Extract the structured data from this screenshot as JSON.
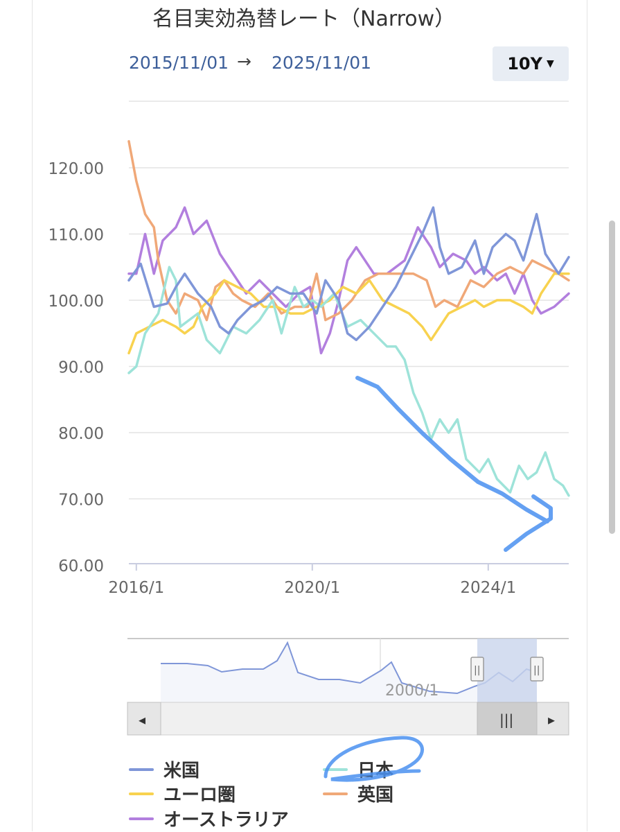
{
  "header": {
    "title": "名目実効為替レート（Narrow）",
    "date_from": "2015/11/01",
    "arrow": "→",
    "date_to": "2025/11/01",
    "range_button": "10Y",
    "range_caret": "▼"
  },
  "navigator": {
    "label": "2000/1",
    "handle_glyph": "||",
    "scroll_left": "◂",
    "scroll_right": "▸",
    "scroll_thumb": "|||"
  },
  "chart_data": {
    "type": "line",
    "title": "名目実効為替レート（Narrow）",
    "xlabel": "",
    "ylabel": "",
    "ylim": [
      60,
      130
    ],
    "xlim": [
      2015.83,
      2025.83
    ],
    "y_ticks": [
      "60.00",
      "70.00",
      "80.00",
      "90.00",
      "100.00",
      "110.00",
      "120.00"
    ],
    "x_ticks": [
      {
        "label": "2016/1",
        "value": 2016.0
      },
      {
        "label": "2020/1",
        "value": 2020.0
      },
      {
        "label": "2024/1",
        "value": 2024.0
      }
    ],
    "grid": true,
    "legend_position": "bottom",
    "series": [
      {
        "name": "米国",
        "color": "#7f96d8",
        "points": [
          [
            2015.83,
            103
          ],
          [
            2016.1,
            105.5
          ],
          [
            2016.4,
            99
          ],
          [
            2016.7,
            99.5
          ],
          [
            2016.9,
            102
          ],
          [
            2017.1,
            104
          ],
          [
            2017.4,
            101
          ],
          [
            2017.7,
            99
          ],
          [
            2017.9,
            96
          ],
          [
            2018.1,
            95
          ],
          [
            2018.3,
            97
          ],
          [
            2018.6,
            99
          ],
          [
            2018.9,
            100
          ],
          [
            2019.2,
            102
          ],
          [
            2019.5,
            101
          ],
          [
            2019.8,
            101
          ],
          [
            2020.1,
            98
          ],
          [
            2020.3,
            103
          ],
          [
            2020.6,
            100
          ],
          [
            2020.8,
            95
          ],
          [
            2021.0,
            94
          ],
          [
            2021.3,
            96
          ],
          [
            2021.6,
            99
          ],
          [
            2021.9,
            102
          ],
          [
            2022.2,
            106
          ],
          [
            2022.5,
            110
          ],
          [
            2022.75,
            114
          ],
          [
            2022.9,
            108
          ],
          [
            2023.1,
            104
          ],
          [
            2023.4,
            105
          ],
          [
            2023.7,
            109
          ],
          [
            2023.9,
            104
          ],
          [
            2024.1,
            108
          ],
          [
            2024.4,
            110
          ],
          [
            2024.6,
            109
          ],
          [
            2024.8,
            106
          ],
          [
            2025.1,
            113
          ],
          [
            2025.3,
            107
          ],
          [
            2025.6,
            104
          ],
          [
            2025.83,
            106.5
          ]
        ]
      },
      {
        "name": "日本",
        "color": "#9ee3d9",
        "points": [
          [
            2015.83,
            89
          ],
          [
            2016.0,
            90
          ],
          [
            2016.2,
            95
          ],
          [
            2016.5,
            98
          ],
          [
            2016.75,
            105
          ],
          [
            2016.9,
            103
          ],
          [
            2017.0,
            96
          ],
          [
            2017.2,
            97
          ],
          [
            2017.4,
            98
          ],
          [
            2017.6,
            94
          ],
          [
            2017.9,
            92
          ],
          [
            2018.2,
            96
          ],
          [
            2018.5,
            95
          ],
          [
            2018.8,
            97
          ],
          [
            2019.1,
            100
          ],
          [
            2019.3,
            95
          ],
          [
            2019.6,
            102
          ],
          [
            2019.8,
            99
          ],
          [
            2020.0,
            100
          ],
          [
            2020.2,
            99
          ],
          [
            2020.5,
            101
          ],
          [
            2020.8,
            96
          ],
          [
            2021.1,
            97
          ],
          [
            2021.4,
            95
          ],
          [
            2021.7,
            93
          ],
          [
            2021.9,
            93
          ],
          [
            2022.1,
            91
          ],
          [
            2022.3,
            86
          ],
          [
            2022.5,
            83
          ],
          [
            2022.7,
            79
          ],
          [
            2022.9,
            82
          ],
          [
            2023.1,
            80
          ],
          [
            2023.3,
            82
          ],
          [
            2023.5,
            76
          ],
          [
            2023.8,
            74
          ],
          [
            2024.0,
            76
          ],
          [
            2024.2,
            73
          ],
          [
            2024.5,
            71
          ],
          [
            2024.7,
            75
          ],
          [
            2024.9,
            73
          ],
          [
            2025.1,
            74
          ],
          [
            2025.3,
            77
          ],
          [
            2025.5,
            73
          ],
          [
            2025.7,
            72
          ],
          [
            2025.83,
            70.5
          ]
        ]
      },
      {
        "name": "ユーロ圏",
        "color": "#f8d24f",
        "points": [
          [
            2015.83,
            92
          ],
          [
            2016.0,
            95
          ],
          [
            2016.3,
            96
          ],
          [
            2016.6,
            97
          ],
          [
            2016.9,
            96
          ],
          [
            2017.1,
            95
          ],
          [
            2017.3,
            96
          ],
          [
            2017.5,
            99
          ],
          [
            2017.8,
            101
          ],
          [
            2018.0,
            103
          ],
          [
            2018.3,
            102
          ],
          [
            2018.6,
            101
          ],
          [
            2018.9,
            99
          ],
          [
            2019.2,
            99
          ],
          [
            2019.5,
            98
          ],
          [
            2019.8,
            98
          ],
          [
            2020.1,
            99
          ],
          [
            2020.4,
            100
          ],
          [
            2020.7,
            102
          ],
          [
            2021.0,
            101
          ],
          [
            2021.3,
            103
          ],
          [
            2021.6,
            100
          ],
          [
            2021.9,
            99
          ],
          [
            2022.2,
            98
          ],
          [
            2022.5,
            96
          ],
          [
            2022.7,
            94
          ],
          [
            2022.9,
            96
          ],
          [
            2023.1,
            98
          ],
          [
            2023.4,
            99
          ],
          [
            2023.7,
            100
          ],
          [
            2023.9,
            99
          ],
          [
            2024.2,
            100
          ],
          [
            2024.5,
            100
          ],
          [
            2024.8,
            99
          ],
          [
            2025.0,
            98
          ],
          [
            2025.2,
            101
          ],
          [
            2025.5,
            104
          ],
          [
            2025.83,
            104
          ]
        ]
      },
      {
        "name": "英国",
        "color": "#f0a878",
        "points": [
          [
            2015.83,
            124
          ],
          [
            2016.0,
            118
          ],
          [
            2016.2,
            113
          ],
          [
            2016.4,
            111
          ],
          [
            2016.5,
            106
          ],
          [
            2016.7,
            100
          ],
          [
            2016.9,
            98
          ],
          [
            2017.1,
            101
          ],
          [
            2017.4,
            100
          ],
          [
            2017.6,
            97
          ],
          [
            2017.8,
            102
          ],
          [
            2018.0,
            103
          ],
          [
            2018.2,
            101
          ],
          [
            2018.4,
            100
          ],
          [
            2018.7,
            99
          ],
          [
            2019.0,
            101
          ],
          [
            2019.3,
            98
          ],
          [
            2019.6,
            99
          ],
          [
            2019.9,
            99
          ],
          [
            2020.1,
            104
          ],
          [
            2020.3,
            97
          ],
          [
            2020.6,
            98
          ],
          [
            2020.9,
            100
          ],
          [
            2021.2,
            103
          ],
          [
            2021.5,
            104
          ],
          [
            2021.8,
            104
          ],
          [
            2022.0,
            104
          ],
          [
            2022.3,
            104
          ],
          [
            2022.6,
            103
          ],
          [
            2022.8,
            99
          ],
          [
            2023.0,
            100
          ],
          [
            2023.3,
            99
          ],
          [
            2023.6,
            103
          ],
          [
            2023.9,
            102
          ],
          [
            2024.2,
            104
          ],
          [
            2024.5,
            105
          ],
          [
            2024.8,
            104
          ],
          [
            2025.0,
            106
          ],
          [
            2025.3,
            105
          ],
          [
            2025.6,
            104
          ],
          [
            2025.83,
            103
          ]
        ]
      },
      {
        "name": "オーストラリア",
        "color": "#b27fde",
        "points": [
          [
            2015.83,
            104
          ],
          [
            2016.0,
            104
          ],
          [
            2016.2,
            110
          ],
          [
            2016.4,
            104
          ],
          [
            2016.6,
            109
          ],
          [
            2016.9,
            111
          ],
          [
            2017.1,
            114
          ],
          [
            2017.3,
            110
          ],
          [
            2017.6,
            112
          ],
          [
            2017.9,
            107
          ],
          [
            2018.2,
            104
          ],
          [
            2018.5,
            101
          ],
          [
            2018.8,
            103
          ],
          [
            2019.1,
            101
          ],
          [
            2019.4,
            99
          ],
          [
            2019.7,
            101
          ],
          [
            2019.95,
            102
          ],
          [
            2020.2,
            92
          ],
          [
            2020.4,
            95
          ],
          [
            2020.6,
            100
          ],
          [
            2020.8,
            106
          ],
          [
            2021.0,
            108
          ],
          [
            2021.2,
            106
          ],
          [
            2021.4,
            104
          ],
          [
            2021.7,
            104
          ],
          [
            2021.9,
            105
          ],
          [
            2022.1,
            106
          ],
          [
            2022.4,
            111
          ],
          [
            2022.7,
            108
          ],
          [
            2022.9,
            105
          ],
          [
            2023.2,
            107
          ],
          [
            2023.5,
            106
          ],
          [
            2023.7,
            104
          ],
          [
            2023.9,
            105
          ],
          [
            2024.2,
            103
          ],
          [
            2024.4,
            104
          ],
          [
            2024.6,
            101
          ],
          [
            2024.8,
            104
          ],
          [
            2025.0,
            100
          ],
          [
            2025.2,
            98
          ],
          [
            2025.5,
            99
          ],
          [
            2025.83,
            101
          ]
        ]
      }
    ]
  }
}
